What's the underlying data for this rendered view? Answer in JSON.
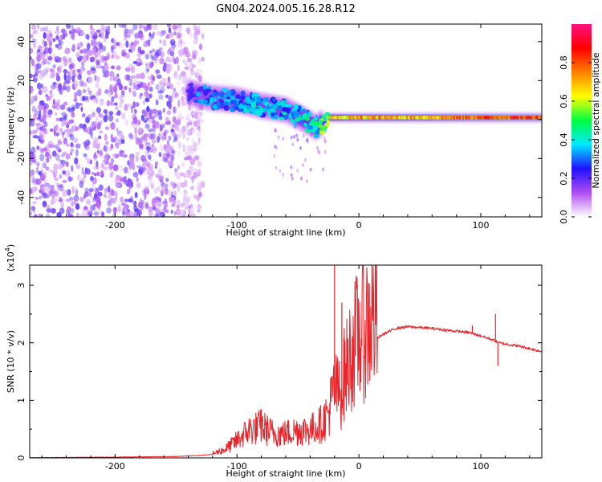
{
  "chart_data": [
    {
      "type": "heatmap",
      "title": "GN04.2024.005.16.28.R12",
      "xlabel": "Height of straight line (km)",
      "ylabel": "Frequency (Hz)",
      "xlim": [
        -270,
        150
      ],
      "ylim": [
        -50,
        49
      ],
      "xticks": [
        -200,
        -100,
        0,
        100
      ],
      "xtick_labels": [
        "-200",
        "-100",
        "0",
        "100"
      ],
      "yticks": [
        -40,
        -20,
        0,
        20,
        40
      ],
      "ytick_labels": [
        "-40",
        "-20",
        "0",
        "20",
        "40"
      ],
      "colorbar": {
        "label": "Normalized spectral amplitude",
        "range": [
          0,
          1
        ],
        "ticks": [
          0.0,
          0.2,
          0.4,
          0.6,
          0.8
        ],
        "tick_labels": [
          "0.0",
          "0.2",
          "0.4",
          "0.6",
          "0.8"
        ],
        "colors": [
          "#ffffff",
          "#b04cf0",
          "#2010ff",
          "#00e8ff",
          "#00ff40",
          "#ffff00",
          "#ff8000",
          "#ff0000",
          "#ff1080"
        ]
      },
      "ridge": {
        "x": [
          -140,
          -120,
          -100,
          -80,
          -60,
          -45,
          -35,
          -25,
          0,
          50,
          100,
          150
        ],
        "y": [
          14,
          11,
          10,
          7,
          5,
          0,
          -4,
          1,
          1,
          1,
          1,
          1
        ],
        "amplitude": [
          0.3,
          0.35,
          0.35,
          0.4,
          0.4,
          0.45,
          0.5,
          0.6,
          0.7,
          0.7,
          0.8,
          0.85
        ]
      }
    },
    {
      "type": "line",
      "series_name": "SNR",
      "xlabel": "Height of straight line (km)",
      "ylabel": "SNR (10 * v/v)",
      "y_scale_label": "(x10",
      "y_scale_exp": "4",
      "y_scale_close": ")",
      "xlim": [
        -270,
        150
      ],
      "ylim": [
        0,
        3.35
      ],
      "xticks": [
        -200,
        -100,
        0,
        100
      ],
      "xtick_labels": [
        "-200",
        "-100",
        "0",
        "100"
      ],
      "yticks": [
        0,
        1,
        2,
        3
      ],
      "ytick_labels": [
        "0",
        "1",
        "2",
        "3"
      ],
      "x": [
        -270,
        -200,
        -150,
        -130,
        -120,
        -110,
        -100,
        -90,
        -80,
        -70,
        -60,
        -50,
        -40,
        -35,
        -30,
        -25,
        -20,
        -15,
        -10,
        -5,
        0,
        10,
        20,
        30,
        40,
        60,
        80,
        90,
        100,
        110,
        115,
        120,
        130,
        140,
        150
      ],
      "y": [
        0.0,
        0.01,
        0.02,
        0.04,
        0.06,
        0.12,
        0.25,
        0.4,
        0.45,
        0.35,
        0.35,
        0.4,
        0.4,
        0.45,
        0.5,
        0.65,
        1.0,
        0.9,
        1.3,
        1.6,
        1.75,
        2.0,
        2.15,
        2.25,
        2.28,
        2.25,
        2.2,
        2.18,
        2.12,
        2.05,
        2.0,
        1.98,
        1.95,
        1.9,
        1.85
      ],
      "spikes": [
        {
          "x": -80,
          "y": 0.85
        },
        {
          "x": -20,
          "y": 3.35
        },
        {
          "x": -14,
          "y": 2.7
        },
        {
          "x": -12,
          "y": 2.25
        },
        {
          "x": 93,
          "y": 2.3
        },
        {
          "x": 112,
          "y": 2.5
        },
        {
          "x": 114,
          "y": 1.6
        }
      ]
    }
  ]
}
